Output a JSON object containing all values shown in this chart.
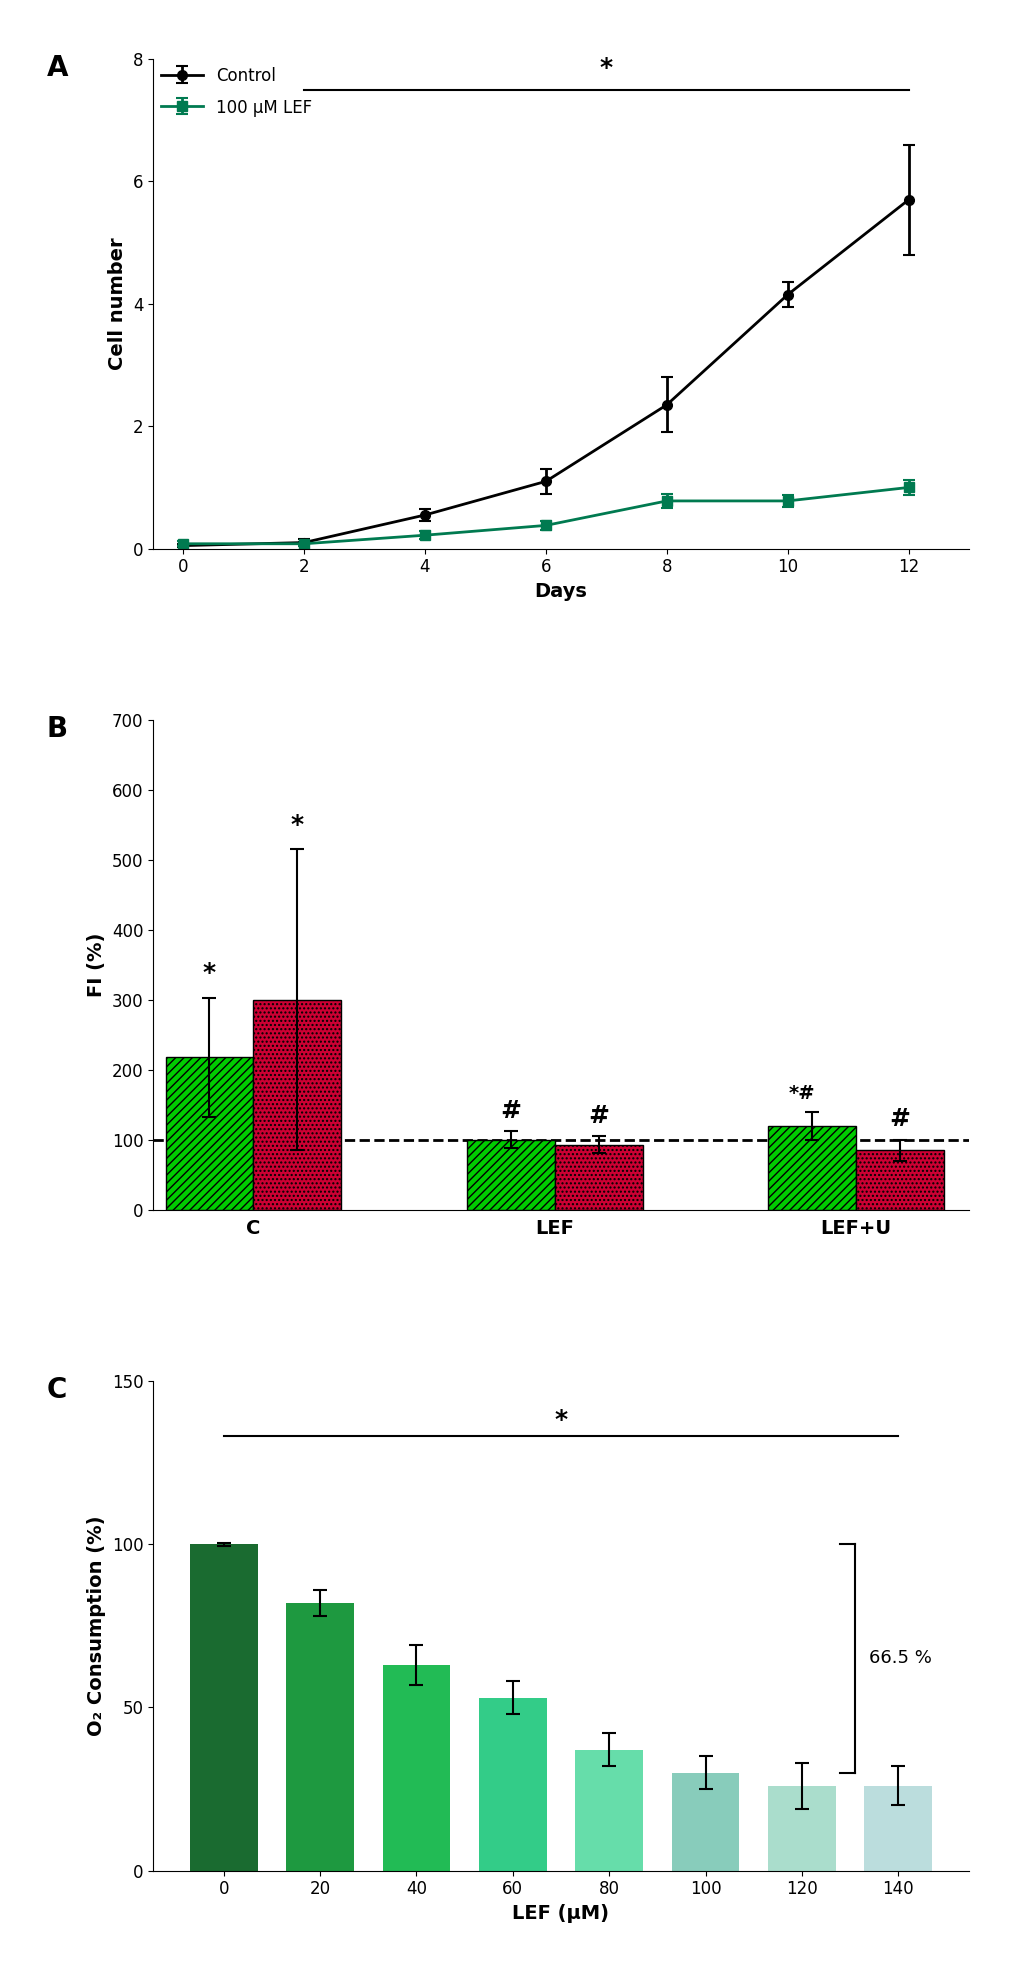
{
  "panel_A": {
    "days": [
      0,
      2,
      4,
      6,
      8,
      10,
      12
    ],
    "control_mean": [
      0.05,
      0.1,
      0.55,
      1.1,
      2.35,
      4.15,
      5.7
    ],
    "control_err": [
      0.03,
      0.05,
      0.1,
      0.2,
      0.45,
      0.2,
      0.9
    ],
    "lef_mean": [
      0.08,
      0.08,
      0.22,
      0.38,
      0.78,
      0.78,
      1.0
    ],
    "lef_err": [
      0.04,
      0.03,
      0.07,
      0.08,
      0.12,
      0.1,
      0.12
    ],
    "control_color": "#000000",
    "lef_color": "#007a50",
    "ylabel": "Cell number",
    "xlabel": "Days",
    "ylim": [
      0,
      8
    ],
    "yticks": [
      0,
      2,
      4,
      6,
      8
    ],
    "xlim": [
      -0.5,
      13
    ],
    "xticks": [
      0,
      2,
      4,
      6,
      8,
      10,
      12
    ],
    "label": "A",
    "sig_x_start": 2,
    "sig_x_end": 12,
    "sig_y": 7.5
  },
  "panel_B": {
    "groups": [
      "C",
      "LEF",
      "LEF+U"
    ],
    "group_positions": [
      0.3,
      1.5,
      2.7
    ],
    "green_mean": [
      218,
      100,
      120
    ],
    "green_err": [
      85,
      12,
      20
    ],
    "red_mean": [
      300,
      93,
      85
    ],
    "red_err": [
      215,
      12,
      15
    ],
    "green_color": "#00cc00",
    "red_color": "#cc0033",
    "bar_width": 0.35,
    "dashed_line": 100,
    "ylabel": "FI (%)",
    "ylim": [
      0,
      700
    ],
    "yticks": [
      0,
      100,
      200,
      300,
      400,
      500,
      600,
      700
    ],
    "label": "B"
  },
  "panel_C": {
    "lef_conc": [
      0,
      20,
      40,
      60,
      80,
      100,
      120,
      140
    ],
    "o2_mean": [
      100,
      82,
      63,
      53,
      37,
      30,
      26,
      26
    ],
    "o2_err": [
      0.5,
      4,
      6,
      5,
      5,
      5,
      7,
      6
    ],
    "bar_colors": [
      "#1a6b30",
      "#1e9940",
      "#22bb55",
      "#33cc88",
      "#66ddaa",
      "#88ccbb",
      "#aaddcc",
      "#bbdddd"
    ],
    "ylabel": "O₂ Consumption (%)",
    "xlabel": "LEF (μM)",
    "ylim": [
      0,
      150
    ],
    "yticks": [
      0,
      50,
      100,
      150
    ],
    "label": "C",
    "bracket_annotation": "66.5 %",
    "sig_x_start": 0,
    "sig_x_end": 7,
    "sig_y": 133,
    "bracket_y_top": 100,
    "bracket_y_bot": 30,
    "bracket_x": 6.55
  }
}
